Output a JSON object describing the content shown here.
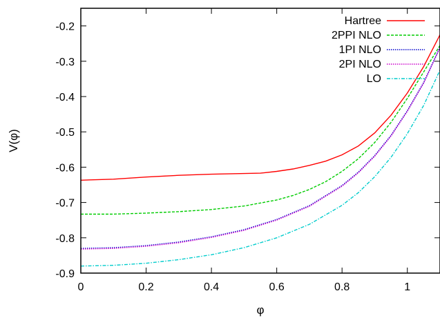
{
  "chart_data": {
    "type": "line",
    "title": "",
    "xlabel": "φ",
    "ylabel": "V(φ)",
    "xlim": [
      0,
      1.1
    ],
    "ylim": [
      -0.9,
      -0.15
    ],
    "xticks": [
      0,
      0.2,
      0.4,
      0.6,
      0.8,
      1
    ],
    "xtick_labels": [
      "0",
      "0.2",
      "0.4",
      "0.6",
      "0.8",
      "1"
    ],
    "yticks": [
      -0.9,
      -0.8,
      -0.7,
      -0.6,
      -0.5,
      -0.4,
      -0.3,
      -0.2
    ],
    "ytick_labels": [
      "-0.9",
      "-0.8",
      "-0.7",
      "-0.6",
      "-0.5",
      "-0.4",
      "-0.3",
      "-0.2"
    ],
    "grid": false,
    "legend_position": "top-right",
    "series": [
      {
        "name": "Hartree",
        "color": "#ff0000",
        "dash": "solid",
        "x": [
          0,
          0.1,
          0.2,
          0.3,
          0.4,
          0.5,
          0.55,
          0.6,
          0.65,
          0.7,
          0.75,
          0.8,
          0.85,
          0.9,
          0.95,
          1.0,
          1.05,
          1.1
        ],
        "y": [
          -0.637,
          -0.634,
          -0.628,
          -0.623,
          -0.62,
          -0.618,
          -0.617,
          -0.612,
          -0.605,
          -0.595,
          -0.583,
          -0.565,
          -0.54,
          -0.503,
          -0.453,
          -0.39,
          -0.315,
          -0.225
        ]
      },
      {
        "name": "2PPI NLO",
        "color": "#00cc00",
        "dash": "dashed",
        "x": [
          0,
          0.1,
          0.2,
          0.3,
          0.4,
          0.5,
          0.6,
          0.65,
          0.7,
          0.75,
          0.8,
          0.85,
          0.9,
          0.95,
          1.0,
          1.05,
          1.1
        ],
        "y": [
          -0.733,
          -0.733,
          -0.73,
          -0.726,
          -0.72,
          -0.71,
          -0.693,
          -0.68,
          -0.663,
          -0.641,
          -0.612,
          -0.576,
          -0.53,
          -0.473,
          -0.405,
          -0.33,
          -0.255
        ]
      },
      {
        "name": "1PI NLO",
        "color": "#0000cc",
        "dash": "dotted",
        "x": [
          0,
          0.1,
          0.2,
          0.3,
          0.4,
          0.5,
          0.6,
          0.7,
          0.8,
          0.85,
          0.9,
          0.95,
          1.0,
          1.05,
          1.1
        ],
        "y": [
          -0.83,
          -0.828,
          -0.822,
          -0.812,
          -0.797,
          -0.777,
          -0.748,
          -0.709,
          -0.652,
          -0.614,
          -0.567,
          -0.51,
          -0.44,
          -0.36,
          -0.26
        ]
      },
      {
        "name": "2PI NLO",
        "color": "#cc00cc",
        "dash": "dotted",
        "x": [
          0,
          0.1,
          0.2,
          0.3,
          0.4,
          0.5,
          0.6,
          0.7,
          0.8,
          0.85,
          0.9,
          0.95,
          1.0,
          1.05,
          1.1
        ],
        "y": [
          -0.832,
          -0.83,
          -0.824,
          -0.814,
          -0.799,
          -0.779,
          -0.75,
          -0.711,
          -0.654,
          -0.616,
          -0.569,
          -0.512,
          -0.442,
          -0.362,
          -0.262
        ]
      },
      {
        "name": "LO",
        "color": "#00cccc",
        "dash": "dashdot",
        "x": [
          0,
          0.1,
          0.2,
          0.3,
          0.4,
          0.5,
          0.6,
          0.7,
          0.8,
          0.85,
          0.9,
          0.95,
          1.0,
          1.05,
          1.1
        ],
        "y": [
          -0.88,
          -0.878,
          -0.872,
          -0.862,
          -0.848,
          -0.828,
          -0.8,
          -0.762,
          -0.708,
          -0.672,
          -0.627,
          -0.572,
          -0.505,
          -0.425,
          -0.325
        ]
      }
    ]
  }
}
